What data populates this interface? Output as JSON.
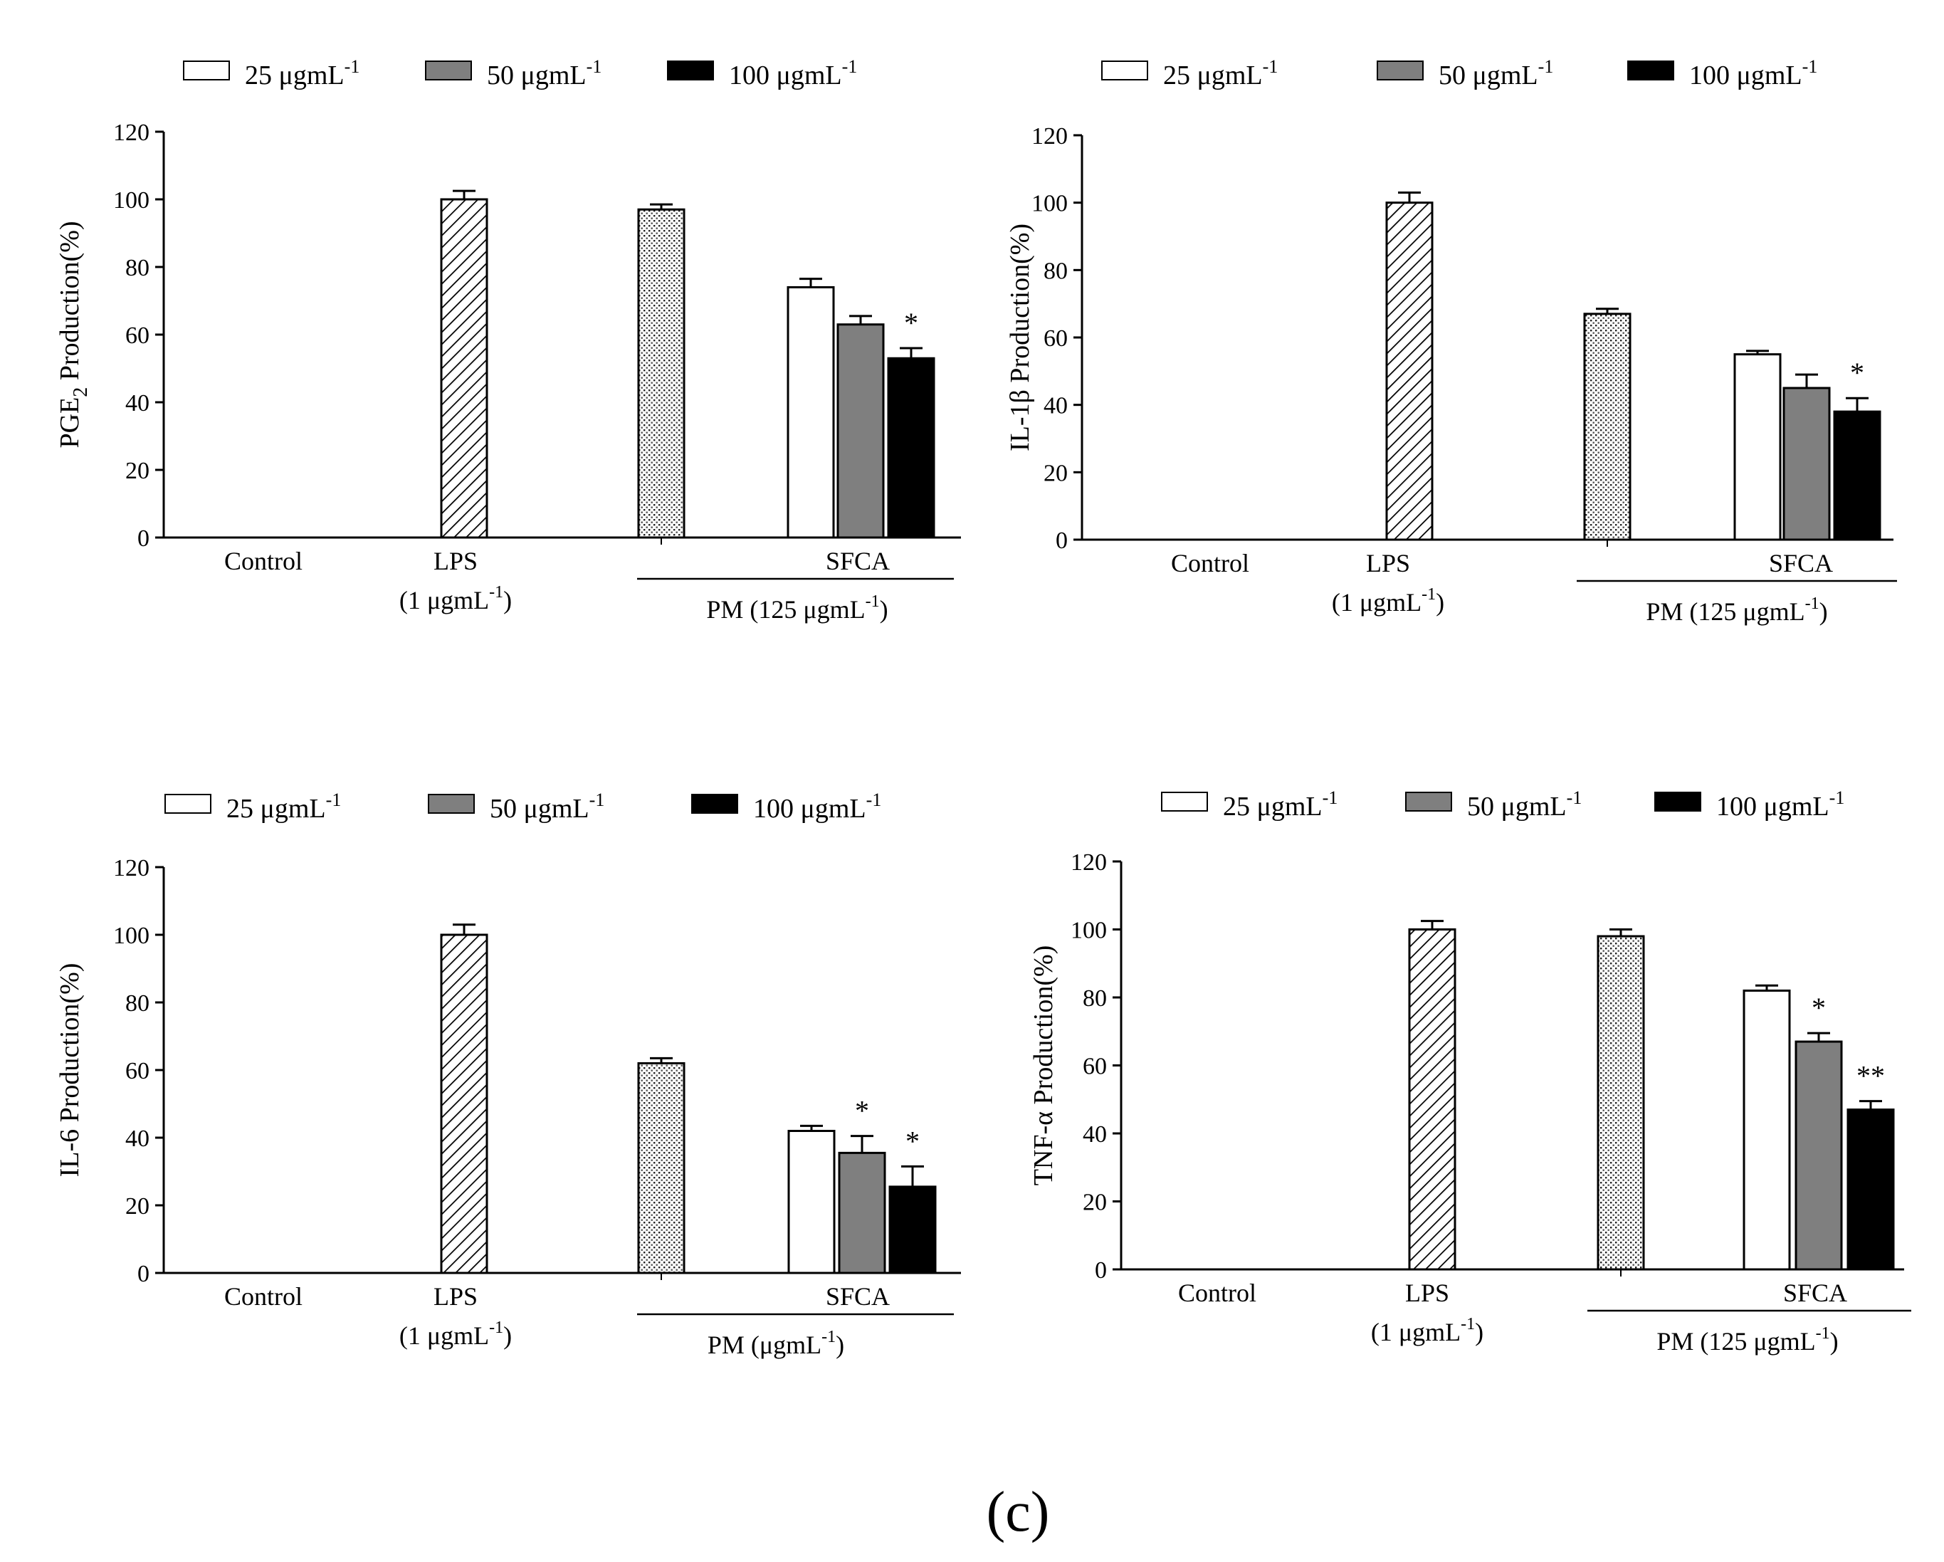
{
  "panel_label": "(c)",
  "colors": {
    "white": "#ffffff",
    "gray": "#7f7f7f",
    "black": "#000000",
    "line": "#000000"
  },
  "chart_data": [
    {
      "type": "bar",
      "ylabel_main": "PGE",
      "ylabel_sub": "2",
      "ylabel_rest": " Production(%)",
      "ylim": [
        0,
        120
      ],
      "yticks": [
        "0",
        "20",
        "40",
        "60",
        "80",
        "100",
        "120"
      ],
      "legend": [
        {
          "label": "25 μgmL",
          "sup": "-1",
          "fill": "white"
        },
        {
          "label": "50 μgmL",
          "sup": "-1",
          "fill": "gray"
        },
        {
          "label": "100 μgmL",
          "sup": "-1",
          "fill": "black"
        }
      ],
      "categories": [
        {
          "label": "Control",
          "sub": "",
          "sup": "",
          "sub_close": ""
        },
        {
          "label": "LPS",
          "sub": "(1 μgmL",
          "sup": "-1",
          "sub_close": ")"
        }
      ],
      "group_label": "SFCA",
      "bracket_label": "PM (125 μgmL",
      "bracket_sup": "-1",
      "bracket_close": ")",
      "bars": [
        {
          "name": "Control",
          "value": 0,
          "error": 0,
          "fill": "none",
          "star": ""
        },
        {
          "name": "LPS",
          "value": 100,
          "error": 2.5,
          "fill": "hatch",
          "star": ""
        },
        {
          "name": "PM",
          "value": 97,
          "error": 1.5,
          "fill": "dots",
          "star": ""
        },
        {
          "name": "SFCA 25",
          "value": 74,
          "error": 2.5,
          "fill": "white",
          "star": ""
        },
        {
          "name": "SFCA 50",
          "value": 63,
          "error": 2.5,
          "fill": "gray",
          "star": ""
        },
        {
          "name": "SFCA 100",
          "value": 53,
          "error": 3,
          "fill": "black",
          "star": "*"
        }
      ]
    },
    {
      "type": "bar",
      "ylabel_main": "IL-1β  Production(%)",
      "ylabel_sub": "",
      "ylabel_rest": "",
      "ylim": [
        0,
        120
      ],
      "yticks": [
        "0",
        "20",
        "40",
        "60",
        "80",
        "100",
        "120"
      ],
      "legend": [
        {
          "label": "25 μgmL",
          "sup": "-1",
          "fill": "white"
        },
        {
          "label": "50 μgmL",
          "sup": "-1",
          "fill": "gray"
        },
        {
          "label": "100 μgmL",
          "sup": "-1",
          "fill": "black"
        }
      ],
      "categories": [
        {
          "label": "Control",
          "sub": "",
          "sup": "",
          "sub_close": ""
        },
        {
          "label": "LPS",
          "sub": "(1 μgmL",
          "sup": "-1",
          "sub_close": ")"
        }
      ],
      "group_label": "SFCA",
      "bracket_label": "PM (125 μgmL",
      "bracket_sup": "-1",
      "bracket_close": ")",
      "bars": [
        {
          "name": "Control",
          "value": 0,
          "error": 0,
          "fill": "none",
          "star": ""
        },
        {
          "name": "LPS",
          "value": 100,
          "error": 3,
          "fill": "hatch",
          "star": ""
        },
        {
          "name": "PM",
          "value": 67,
          "error": 1.5,
          "fill": "dots",
          "star": ""
        },
        {
          "name": "SFCA 25",
          "value": 55,
          "error": 1,
          "fill": "white",
          "star": ""
        },
        {
          "name": "SFCA 50",
          "value": 45,
          "error": 4,
          "fill": "gray",
          "star": ""
        },
        {
          "name": "SFCA 100",
          "value": 38,
          "error": 4,
          "fill": "black",
          "star": "*"
        }
      ]
    },
    {
      "type": "bar",
      "ylabel_main": "IL-6 Production(%)",
      "ylabel_sub": "",
      "ylabel_rest": "",
      "ylim": [
        0,
        120
      ],
      "yticks": [
        "0",
        "20",
        "40",
        "60",
        "80",
        "100",
        "120"
      ],
      "legend": [
        {
          "label": "25 μgmL",
          "sup": "-1",
          "fill": "white"
        },
        {
          "label": "50 μgmL",
          "sup": "-1",
          "fill": "gray"
        },
        {
          "label": "100 μgmL",
          "sup": "-1",
          "fill": "black"
        }
      ],
      "categories": [
        {
          "label": "Control",
          "sub": "",
          "sup": "",
          "sub_close": ""
        },
        {
          "label": "LPS",
          "sub": "(1 μgmL",
          "sup": "-1",
          "sub_close": ")"
        }
      ],
      "group_label": "SFCA",
      "bracket_label": "PM (μgmL",
      "bracket_sup": "-1",
      "bracket_close": ")",
      "bars": [
        {
          "name": "Control",
          "value": 0,
          "error": 0,
          "fill": "none",
          "star": ""
        },
        {
          "name": "LPS",
          "value": 100,
          "error": 3,
          "fill": "hatch",
          "star": ""
        },
        {
          "name": "PM",
          "value": 62,
          "error": 1.5,
          "fill": "dots",
          "star": ""
        },
        {
          "name": "SFCA 25",
          "value": 42,
          "error": 1.5,
          "fill": "white",
          "star": ""
        },
        {
          "name": "SFCA 50",
          "value": 35.5,
          "error": 5,
          "fill": "gray",
          "star": "*"
        },
        {
          "name": "SFCA 100",
          "value": 25.5,
          "error": 6,
          "fill": "black",
          "star": "*"
        }
      ]
    },
    {
      "type": "bar",
      "ylabel_main": "TNF-α  Production(%)",
      "ylabel_sub": "",
      "ylabel_rest": "",
      "ylim": [
        0,
        120
      ],
      "yticks": [
        "0",
        "20",
        "40",
        "60",
        "80",
        "100",
        "120"
      ],
      "legend": [
        {
          "label": "25 μgmL",
          "sup": "-1",
          "fill": "white"
        },
        {
          "label": "50 μgmL",
          "sup": "-1",
          "fill": "gray"
        },
        {
          "label": "100 μgmL",
          "sup": "-1",
          "fill": "black"
        }
      ],
      "categories": [
        {
          "label": "Control",
          "sub": "",
          "sup": "",
          "sub_close": ""
        },
        {
          "label": "LPS",
          "sub": "(1 μgmL",
          "sup": "-1",
          "sub_close": ")"
        }
      ],
      "group_label": "SFCA",
      "bracket_label": "PM (125 μgmL",
      "bracket_sup": "-1",
      "bracket_close": ")",
      "bars": [
        {
          "name": "Control",
          "value": 0,
          "error": 0,
          "fill": "none",
          "star": ""
        },
        {
          "name": "LPS",
          "value": 100,
          "error": 2.5,
          "fill": "hatch",
          "star": ""
        },
        {
          "name": "PM",
          "value": 98,
          "error": 2,
          "fill": "dots",
          "star": ""
        },
        {
          "name": "SFCA 25",
          "value": 82,
          "error": 1.5,
          "fill": "white",
          "star": ""
        },
        {
          "name": "SFCA 50",
          "value": 67,
          "error": 2.5,
          "fill": "gray",
          "star": "*"
        },
        {
          "name": "SFCA 100",
          "value": 47,
          "error": 2.5,
          "fill": "black",
          "star": "**"
        }
      ]
    }
  ]
}
